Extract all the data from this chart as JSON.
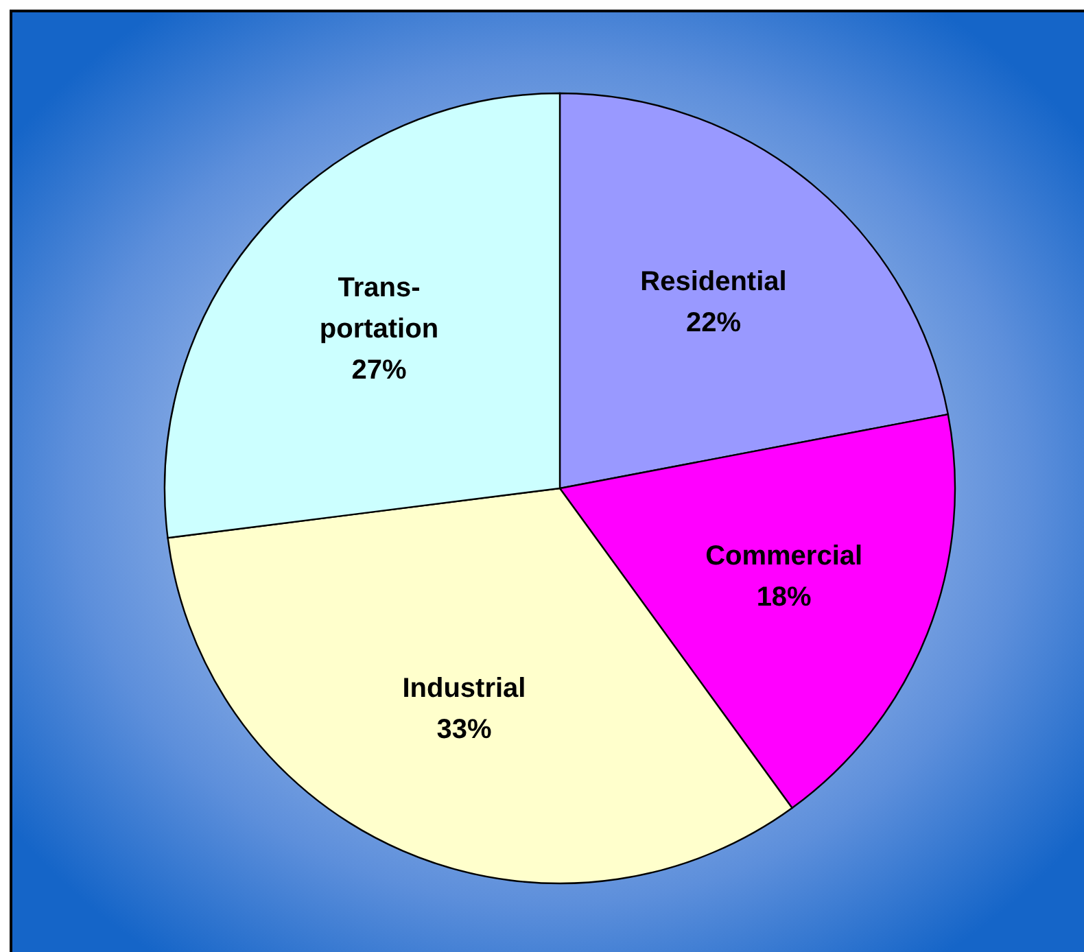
{
  "chart_data": {
    "type": "pie",
    "categories": [
      "Residential",
      "Commercial",
      "Industrial",
      "Trans-portation"
    ],
    "values": [
      22,
      18,
      33,
      27
    ],
    "colors": [
      "#9999ff",
      "#ff00ff",
      "#ffffcc",
      "#ccffff"
    ],
    "value_labels": [
      "22%",
      "18%",
      "33%",
      "27%"
    ]
  }
}
